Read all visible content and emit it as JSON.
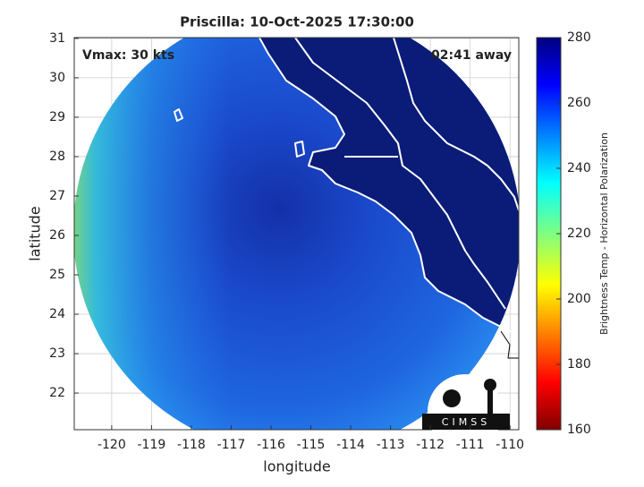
{
  "chart_data": {
    "type": "map",
    "title": "Priscilla: 10-Oct-2025 17:30:00",
    "annotations": [
      "Vmax: 30 kts",
      "02:41 away"
    ],
    "xlabel": "longitude",
    "ylabel": "latitude",
    "xlim": [
      -120.94,
      -109.78
    ],
    "xticks": [
      -120,
      -119,
      -118,
      -117,
      -116,
      -115,
      -114,
      -113,
      -112,
      -111,
      -110
    ],
    "ylim": [
      21.07,
      31.02
    ],
    "yticks": [
      22,
      23,
      24,
      25,
      26,
      27,
      28,
      29,
      30,
      31
    ],
    "grid": true,
    "colorbar": {
      "label": "Brightness Temp - Horizontal Polarization",
      "lim": [
        160,
        280
      ],
      "ticks": [
        160,
        180,
        200,
        220,
        240,
        260,
        280
      ]
    },
    "logo": "CIMSS"
  }
}
